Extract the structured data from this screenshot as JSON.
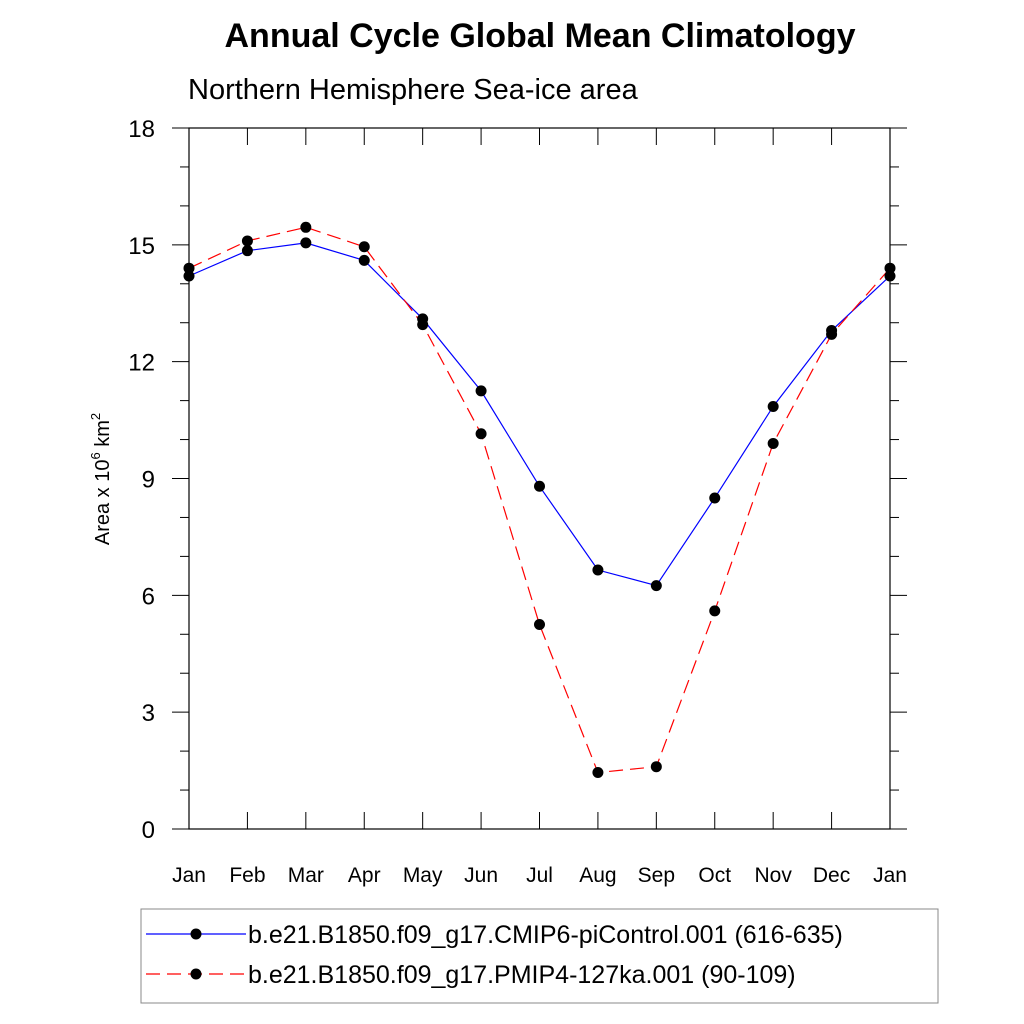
{
  "chart_data": {
    "type": "line",
    "title": "Annual Cycle Global Mean Climatology",
    "subtitle": "Northern Hemisphere Sea-ice area",
    "xlabel": "",
    "ylabel": "Area x 10",
    "ylabel_superscript_1": "6",
    "ylabel_unit": " km",
    "ylabel_superscript_2": "2",
    "categories": [
      "Jan",
      "Feb",
      "Mar",
      "Apr",
      "May",
      "Jun",
      "Jul",
      "Aug",
      "Sep",
      "Oct",
      "Nov",
      "Dec",
      "Jan"
    ],
    "ylim": [
      0,
      18
    ],
    "yticks": [
      0,
      3,
      6,
      9,
      12,
      15,
      18
    ],
    "yticks_minor": [
      1,
      2,
      4,
      5,
      7,
      8,
      10,
      11,
      13,
      14,
      16,
      17
    ],
    "grid": false,
    "legend_position": "bottom",
    "series": [
      {
        "name": "b.e21.B1850.f09_g17.CMIP6-piControl.001 (616-635)",
        "color": "#0000ff",
        "line_style": "solid",
        "values": [
          14.2,
          14.85,
          15.05,
          14.6,
          13.1,
          11.25,
          8.8,
          6.65,
          6.25,
          8.5,
          10.85,
          12.8,
          14.2
        ]
      },
      {
        "name": "b.e21.B1850.f09_g17.PMIP4-127ka.001 (90-109)",
        "color": "#ff0000",
        "line_style": "dashed",
        "values": [
          14.4,
          15.1,
          15.45,
          14.95,
          12.95,
          10.15,
          5.25,
          1.45,
          1.6,
          5.6,
          9.9,
          12.7,
          14.4
        ]
      }
    ]
  }
}
